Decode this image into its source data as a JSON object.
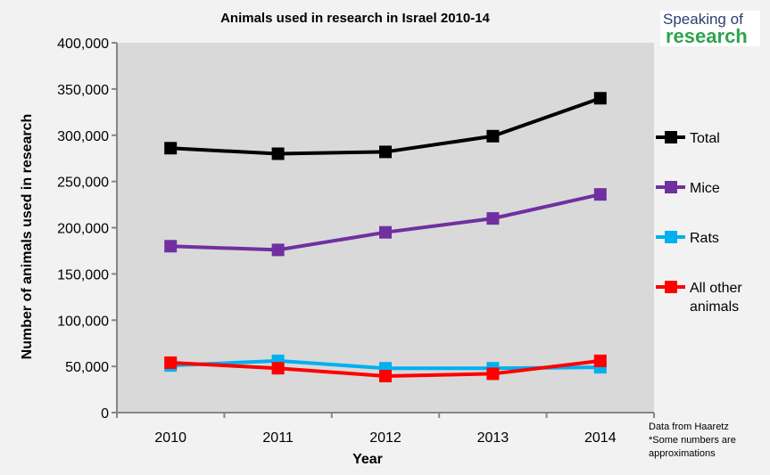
{
  "chart_data": {
    "type": "line",
    "title": "Animals used in research in Israel 2010-14",
    "xlabel": "Year",
    "ylabel": "Number of animals used in research",
    "x": [
      "2010",
      "2011",
      "2012",
      "2013",
      "2014"
    ],
    "ylim": [
      0,
      400000
    ],
    "yticks": [
      0,
      50000,
      100000,
      150000,
      200000,
      250000,
      300000,
      350000,
      400000
    ],
    "ytick_labels": [
      "0",
      "50,000",
      "100,000",
      "150,000",
      "200,000",
      "250,000",
      "300,000",
      "350,000",
      "400,000"
    ],
    "grid": false,
    "legend_position": "right",
    "series": [
      {
        "name": "Total",
        "color": "#000000",
        "values": [
          286000,
          280000,
          282000,
          299000,
          340000
        ]
      },
      {
        "name": "Mice",
        "color": "#7030a0",
        "values": [
          180000,
          176000,
          195000,
          210000,
          236000
        ]
      },
      {
        "name": "Rats",
        "color": "#00b0f0",
        "values": [
          51000,
          56000,
          48000,
          48000,
          49000
        ]
      },
      {
        "name": "All other animals",
        "legend_lines": [
          "All other",
          "animals"
        ],
        "color": "#ff0000",
        "values": [
          54000,
          48000,
          39500,
          42000,
          56000
        ]
      }
    ]
  },
  "logo": {
    "line1": "Speaking of",
    "line2": "research"
  },
  "notes": [
    "Data from Haaretz",
    "*Some numbers are",
    "approximations"
  ]
}
